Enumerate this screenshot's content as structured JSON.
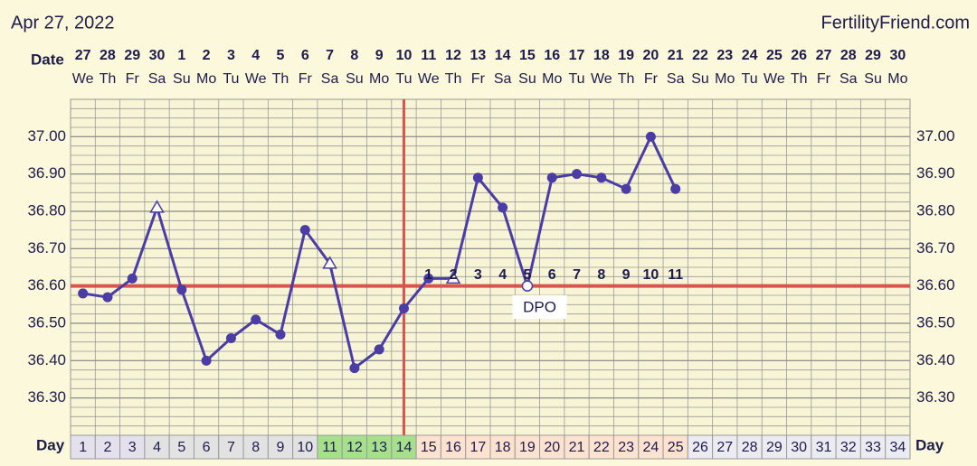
{
  "chart_data": {
    "type": "line",
    "title": "Apr 27, 2022",
    "site": "FertilityFriend.com",
    "date_label": "Date",
    "day_label": "Day",
    "categories": [
      1,
      2,
      3,
      4,
      5,
      6,
      7,
      8,
      9,
      10,
      11,
      12,
      13,
      14,
      15,
      16,
      17,
      18,
      19,
      20,
      21,
      22,
      23,
      24,
      25,
      26,
      27,
      28,
      29,
      30,
      31,
      32,
      33,
      34
    ],
    "dates": [
      27,
      28,
      29,
      30,
      1,
      2,
      3,
      4,
      5,
      6,
      7,
      8,
      9,
      10,
      11,
      12,
      13,
      14,
      15,
      16,
      17,
      18,
      19,
      20,
      21,
      22,
      23,
      24,
      25,
      26,
      27,
      28,
      29,
      30
    ],
    "weekdays": [
      "We",
      "Th",
      "Fr",
      "Sa",
      "Su",
      "Mo",
      "Tu",
      "We",
      "Th",
      "Fr",
      "Sa",
      "Su",
      "Mo",
      "Tu",
      "We",
      "Th",
      "Fr",
      "Sa",
      "Su",
      "Mo",
      "Tu",
      "We",
      "Th",
      "Fr",
      "Sa",
      "Su",
      "Mo",
      "Tu",
      "We",
      "Th",
      "Fr",
      "Sa",
      "Su",
      "Mo"
    ],
    "values": [
      36.58,
      36.57,
      36.62,
      36.81,
      36.59,
      36.4,
      36.46,
      36.51,
      36.47,
      36.75,
      36.66,
      36.38,
      36.43,
      36.54,
      36.62,
      36.62,
      36.89,
      36.81,
      36.6,
      36.89,
      36.9,
      36.89,
      36.86,
      37.0,
      36.86,
      null,
      null,
      null,
      null,
      null,
      null,
      null,
      null,
      null
    ],
    "marker_shapes": [
      "circle",
      "circle",
      "circle",
      "open-triangle",
      "circle",
      "circle",
      "circle",
      "circle",
      "circle",
      "circle",
      "open-triangle",
      "circle",
      "circle",
      "circle",
      "circle",
      "open-triangle",
      "circle",
      "circle",
      "open-circle",
      "circle",
      "circle",
      "circle",
      "circle",
      "circle",
      "circle",
      null,
      null,
      null,
      null,
      null,
      null,
      null,
      null,
      null
    ],
    "color": "#4b3ca6",
    "dpo": [
      null,
      null,
      null,
      null,
      null,
      null,
      null,
      null,
      null,
      null,
      null,
      null,
      null,
      null,
      1,
      2,
      3,
      4,
      5,
      6,
      7,
      8,
      9,
      10,
      11,
      null,
      null,
      null,
      null,
      null,
      null,
      null,
      null,
      null
    ],
    "dpo_label": "DPO",
    "coverline": 36.6,
    "ovulation_day": 14,
    "line_color": "#d9534f",
    "phase_colors": [
      "#e4e0ec",
      "#e4e0ec",
      "#e4e0ec",
      "#e2e2e2",
      "#e2e2e2",
      "#e2e2e2",
      "#e2e2e2",
      "#e2e2e2",
      "#e2e2e2",
      "#e2e2e2",
      "#a6e08a",
      "#a6e08a",
      "#a6e08a",
      "#a6e08a",
      "#fde2cf",
      "#fde2cf",
      "#fde2cf",
      "#fde2cf",
      "#fde2cf",
      "#fde2cf",
      "#fde2cf",
      "#fde2cf",
      "#fde2cf",
      "#fde2cf",
      "#fde2cf",
      "#ebebf1",
      "#ebebf1",
      "#ebebf1",
      "#ebebf1",
      "#ebebf1",
      "#ebebf1",
      "#ebebf1",
      "#ebebf1",
      "#ebebf1"
    ],
    "ylim": [
      36.2,
      37.1
    ],
    "yticks": [
      {
        "value": 36.3,
        "label": "36.30"
      },
      {
        "value": 36.4,
        "label": "36.40"
      },
      {
        "value": 36.5,
        "label": "36.50"
      },
      {
        "value": 36.6,
        "label": "36.60"
      },
      {
        "value": 36.7,
        "label": "36.70"
      },
      {
        "value": 36.8,
        "label": "36.80"
      },
      {
        "value": 36.9,
        "label": "36.90"
      },
      {
        "value": 37.0,
        "label": "37.00"
      }
    ],
    "grid": true
  }
}
